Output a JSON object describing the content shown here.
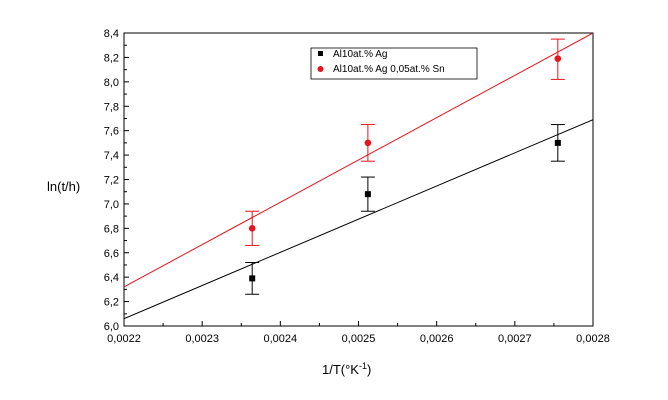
{
  "chart_data": {
    "type": "scatter",
    "xlabel_main": "1/T(°K",
    "xlabel_sup": "-1",
    "xlabel_end": ")",
    "ylabel": "ln(t/h)",
    "xlim": [
      0.0022,
      0.0028
    ],
    "ylim": [
      6.0,
      8.4
    ],
    "x_ticks": [
      0.0022,
      0.0023,
      0.0024,
      0.0025,
      0.0026,
      0.0027,
      0.0028
    ],
    "x_tick_labels": [
      "0,0022",
      "0,0023",
      "0,0024",
      "0,0025",
      "0,0026",
      "0,0027",
      "0,0028"
    ],
    "y_ticks": [
      6.0,
      6.2,
      6.4,
      6.6,
      6.8,
      7.0,
      7.2,
      7.4,
      7.6,
      7.8,
      8.0,
      8.2,
      8.4
    ],
    "y_tick_labels": [
      "6,0",
      "6,2",
      "6,4",
      "6,6",
      "6,8",
      "7,0",
      "7,2",
      "7,4",
      "7,6",
      "7,8",
      "8,0",
      "8,2",
      "8,4"
    ],
    "legend_position": "top-center",
    "series": [
      {
        "name": "Al10at.% Ag",
        "color": "#000000",
        "marker": "square",
        "x": [
          0.002364,
          0.002512,
          0.002755
        ],
        "y": [
          6.39,
          7.08,
          7.5
        ],
        "err_low": [
          6.26,
          6.94,
          7.35
        ],
        "err_high": [
          6.52,
          7.22,
          7.65
        ],
        "fit": {
          "x": [
            0.0022,
            0.0028
          ],
          "y": [
            6.06,
            7.69
          ]
        }
      },
      {
        "name": "Al10at.% Ag 0,05at.% Sn",
        "color": "#e8141b",
        "marker": "circle",
        "x": [
          0.002364,
          0.002512,
          0.002755
        ],
        "y": [
          6.8,
          7.5,
          8.19
        ],
        "err_low": [
          6.66,
          7.35,
          8.02
        ],
        "err_high": [
          6.94,
          7.65,
          8.35
        ],
        "fit": {
          "x": [
            0.0022,
            0.0028
          ],
          "y": [
            6.32,
            8.4
          ]
        }
      }
    ]
  }
}
